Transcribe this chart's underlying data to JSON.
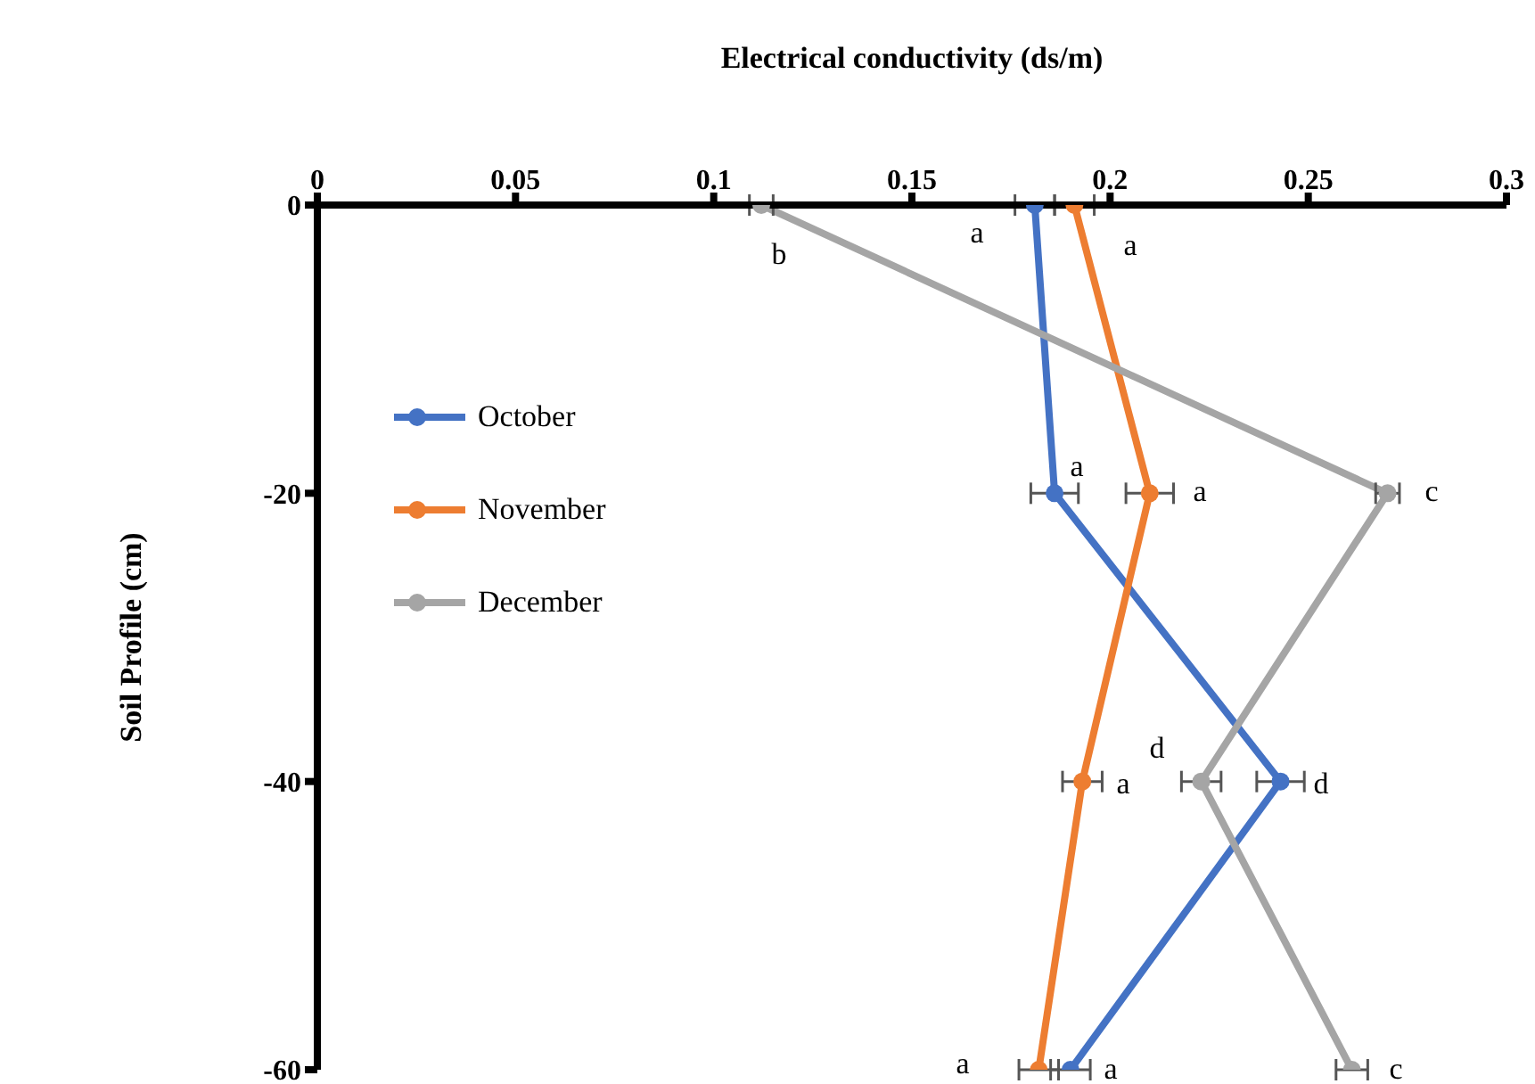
{
  "chart_data": {
    "type": "line",
    "xlabel": "Electrical conductivity (ds/m)",
    "ylabel": "Soil Profile (cm)",
    "xlim": [
      0,
      0.3
    ],
    "xticks": [
      0,
      0.05,
      0.1,
      0.15,
      0.2,
      0.25,
      0.3
    ],
    "ylim": [
      -60,
      0
    ],
    "yticks": [
      -60,
      -40,
      -20,
      0
    ],
    "legend": "left",
    "marker": "circle",
    "line_style": "solid",
    "series": [
      {
        "name": "October",
        "color": "#4472c4",
        "x": [
          0.181,
          0.186,
          0.243,
          0.19
        ],
        "values": [
          0,
          -20,
          -40,
          -60
        ],
        "xerrors": [
          0.005,
          0.006,
          0.006,
          0.005
        ]
      },
      {
        "name": "November",
        "color": "#ed7d31",
        "x": [
          0.191,
          0.21,
          0.193,
          0.182
        ],
        "values": [
          0,
          -20,
          -40,
          -60
        ],
        "xerrors": [
          0.005,
          0.006,
          0.005,
          0.005
        ]
      },
      {
        "name": "December",
        "color": "#a5a5a5",
        "x": [
          0.112,
          0.27,
          0.223,
          0.261
        ],
        "values": [
          0,
          -20,
          -40,
          -60
        ],
        "xerrors": [
          0.003,
          0.003,
          0.005,
          0.004
        ]
      }
    ],
    "annotations": [
      "a",
      "a",
      "b",
      "a",
      "a",
      "c",
      "d",
      "a",
      "d",
      "a",
      "a",
      "c"
    ]
  }
}
